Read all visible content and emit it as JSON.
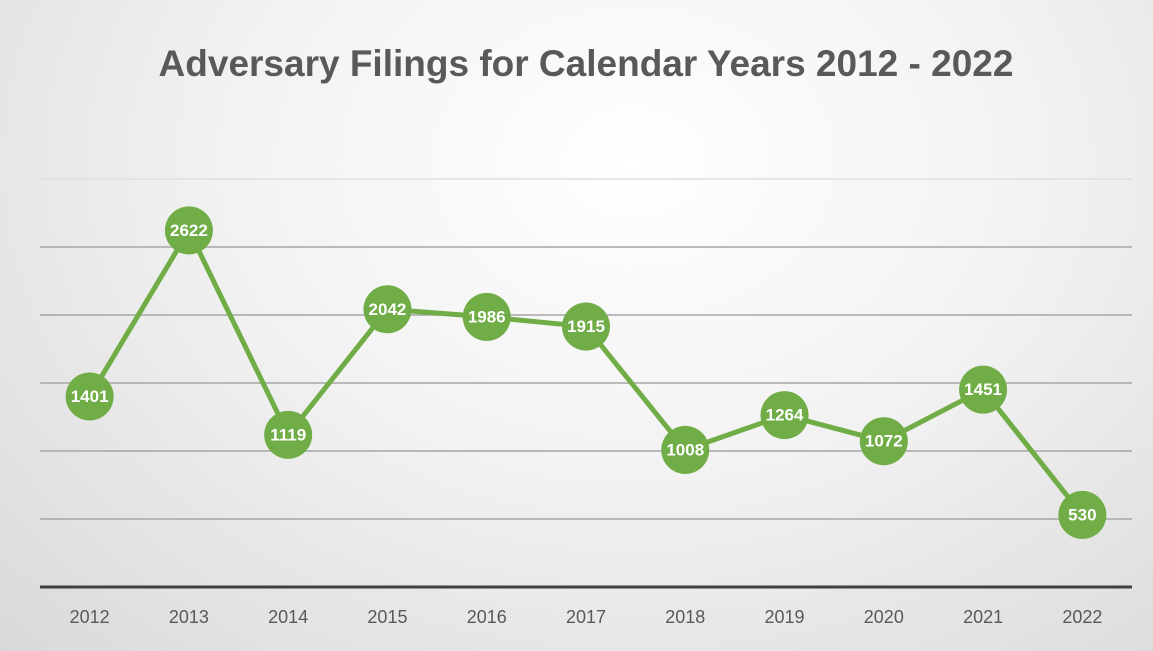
{
  "chart_data": {
    "type": "line",
    "title": "Adversary Filings for Calendar Years 2012 - 2022",
    "categories": [
      "2012",
      "2013",
      "2014",
      "2015",
      "2016",
      "2017",
      "2018",
      "2019",
      "2020",
      "2021",
      "2022"
    ],
    "values": [
      1401,
      2622,
      1119,
      2042,
      1986,
      1915,
      1008,
      1264,
      1072,
      1451,
      530
    ],
    "color": "#70ad47",
    "ylim": [
      0,
      3000
    ],
    "yticks": [
      500,
      1000,
      1500,
      2000,
      2500,
      3000
    ],
    "show_ytick_labels": false,
    "grid": true,
    "data_labels": true
  }
}
